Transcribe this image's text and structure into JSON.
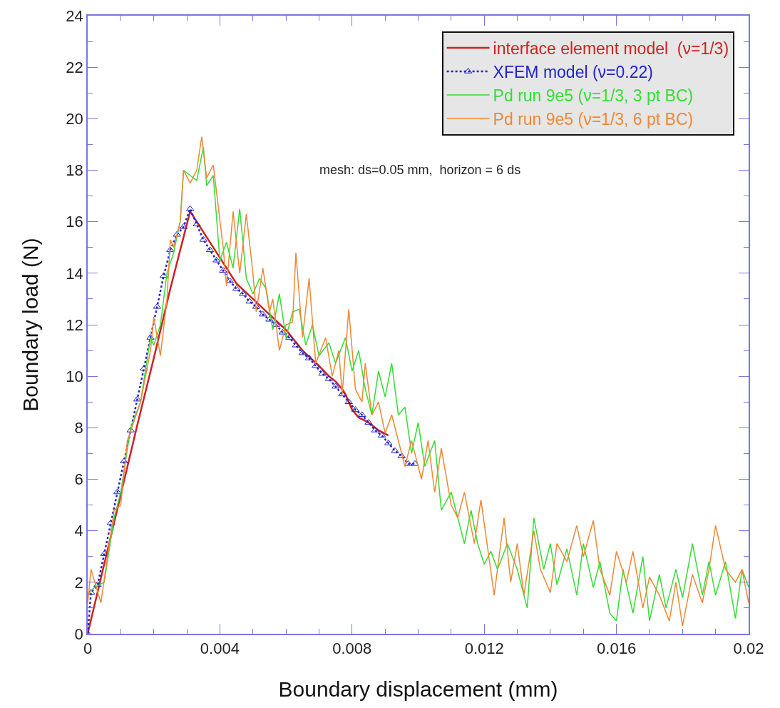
{
  "chart_data": {
    "type": "line",
    "xlabel": "Boundary displacement (mm)",
    "ylabel": "Boundary load (N)",
    "xlim": [
      0,
      0.02
    ],
    "xticks": [
      0,
      0.004,
      0.008,
      0.012,
      0.016,
      0.02
    ],
    "ylim": [
      0,
      24
    ],
    "yticks": [
      0,
      2,
      4,
      6,
      8,
      10,
      12,
      14,
      16,
      18,
      20,
      22,
      24
    ],
    "legend": "top right",
    "annotations": [
      {
        "text": "mesh: ds=0.05 mm,  horizon = 6 ds"
      }
    ],
    "series": [
      {
        "name": "interface element model  (ν=1/3)",
        "color": "#cc2222",
        "line_style": "solid",
        "marker": "none",
        "x": [
          0,
          0.0005,
          0.001,
          0.0015,
          0.002,
          0.0025,
          0.0031,
          0.0035,
          0.004,
          0.0045,
          0.005,
          0.0055,
          0.006,
          0.0065,
          0.007,
          0.0073,
          0.0075,
          0.0077,
          0.0078,
          0.008,
          0.0082,
          0.0085,
          0.0088,
          0.0091
        ],
        "values": [
          0,
          2.7,
          5.4,
          8.1,
          10.7,
          13.4,
          16.4,
          15.6,
          14.6,
          13.6,
          13.0,
          12.4,
          11.8,
          11.0,
          10.4,
          10.0,
          9.8,
          9.5,
          9.3,
          8.7,
          8.4,
          8.2,
          7.9,
          7.7
        ]
      },
      {
        "name": "XFEM model (ν=0.22)",
        "color": "#2222cc",
        "line_style": "dotted",
        "marker": "triangle",
        "x": [
          0,
          0.0001,
          0.0003,
          0.0005,
          0.0007,
          0.0009,
          0.0011,
          0.0013,
          0.0015,
          0.0017,
          0.0019,
          0.0021,
          0.0023,
          0.0025,
          0.0027,
          0.0029,
          0.0031,
          0.0033,
          0.0035,
          0.0037,
          0.0039,
          0.0041,
          0.0043,
          0.0045,
          0.0047,
          0.0049,
          0.0051,
          0.0053,
          0.0055,
          0.0057,
          0.0059,
          0.0061,
          0.0063,
          0.0065,
          0.0067,
          0.0069,
          0.0071,
          0.0073,
          0.0075,
          0.0077,
          0.0079,
          0.0081,
          0.0083,
          0.0085,
          0.0087,
          0.0089,
          0.0091,
          0.0093,
          0.0095,
          0.0097,
          0.0099
        ],
        "values": [
          0,
          1.6,
          1.9,
          3.1,
          4.3,
          5.5,
          6.7,
          7.9,
          9.1,
          10.3,
          11.5,
          12.7,
          13.9,
          14.9,
          15.5,
          15.8,
          16.5,
          15.9,
          15.3,
          14.9,
          14.5,
          14.1,
          13.7,
          13.4,
          13.2,
          12.9,
          12.7,
          12.4,
          12.2,
          12.0,
          11.7,
          11.5,
          11.2,
          10.9,
          10.7,
          10.4,
          10.1,
          9.9,
          9.6,
          9.3,
          9.0,
          8.7,
          8.5,
          8.2,
          7.9,
          7.7,
          7.4,
          7.1,
          6.9,
          6.6,
          6.6
        ]
      },
      {
        "name": "Pd run 9e5 (ν=1/3, 3 pt BC)",
        "color": "#33dd33",
        "line_style": "solid",
        "marker": "none",
        "x": [
          0,
          0.0002,
          0.0005,
          0.0008,
          0.001,
          0.0013,
          0.0016,
          0.0019,
          0.002,
          0.0022,
          0.0024,
          0.0026,
          0.0028,
          0.0029,
          0.0031,
          0.0033,
          0.0035,
          0.0036,
          0.0038,
          0.004,
          0.0042,
          0.0044,
          0.0046,
          0.0048,
          0.005,
          0.0052,
          0.0054,
          0.0056,
          0.0058,
          0.006,
          0.0062,
          0.0064,
          0.0066,
          0.0068,
          0.007,
          0.0073,
          0.0075,
          0.0078,
          0.008,
          0.0082,
          0.0084,
          0.0086,
          0.0088,
          0.009,
          0.0092,
          0.0094,
          0.0096,
          0.0098,
          0.01,
          0.0102,
          0.0105,
          0.0107,
          0.011,
          0.0112,
          0.0114,
          0.0116,
          0.0118,
          0.012,
          0.0122,
          0.0124,
          0.0127,
          0.013,
          0.0133,
          0.0135,
          0.0138,
          0.014,
          0.0142,
          0.0145,
          0.0148,
          0.015,
          0.0153,
          0.0155,
          0.0158,
          0.016,
          0.0162,
          0.0165,
          0.0168,
          0.017,
          0.0173,
          0.0175,
          0.0178,
          0.018,
          0.0183,
          0.0186,
          0.0188,
          0.019,
          0.0193,
          0.0196,
          0.0198,
          0.02
        ],
        "values": [
          1.5,
          1.8,
          2,
          4.5,
          5.5,
          8,
          9,
          11.5,
          11.2,
          12,
          14,
          14.8,
          16,
          18,
          17.8,
          17.6,
          18.9,
          17.4,
          17.8,
          14.5,
          15.2,
          14.2,
          16.5,
          13.8,
          13.2,
          13.8,
          13.4,
          11.8,
          13.2,
          11.5,
          12.5,
          12.6,
          11.2,
          12,
          10.8,
          11.3,
          10.5,
          11.5,
          10.2,
          11,
          9.5,
          8.5,
          10.2,
          9.2,
          10.5,
          8.5,
          8.8,
          7,
          8.2,
          6.5,
          7.5,
          4.8,
          5.5,
          4.5,
          3.5,
          4.8,
          3.5,
          2.7,
          3.2,
          2.5,
          3.5,
          2.5,
          1,
          4.5,
          2.5,
          3.5,
          1.9,
          3.3,
          1.5,
          3.5,
          1.8,
          2.8,
          0.8,
          0.5,
          2.5,
          0.8,
          3,
          0.5,
          2.3,
          1,
          2.5,
          1.4,
          3.5,
          1.5,
          2.8,
          1.5,
          2.8,
          0.6,
          2.5,
          1.8
        ]
      },
      {
        "name": "Pd run 9e5 (ν=1/3, 6 pt BC)",
        "color": "#ee8833",
        "line_style": "solid",
        "marker": "none",
        "x": [
          0,
          0.0001,
          0.0004,
          0.0006,
          0.0008,
          0.001,
          0.0012,
          0.0016,
          0.0019,
          0.002,
          0.0022,
          0.0024,
          0.0025,
          0.0026,
          0.0028,
          0.0029,
          0.0031,
          0.0033,
          0.00345,
          0.0036,
          0.0038,
          0.0041,
          0.0042,
          0.0044,
          0.0046,
          0.0048,
          0.005,
          0.0051,
          0.0053,
          0.0055,
          0.0056,
          0.0058,
          0.006,
          0.0062,
          0.0063,
          0.0065,
          0.0067,
          0.0069,
          0.0072,
          0.0074,
          0.0076,
          0.0077,
          0.0079,
          0.0081,
          0.0083,
          0.0084,
          0.0086,
          0.0088,
          0.009,
          0.0092,
          0.0096,
          0.0098,
          0.0101,
          0.0103,
          0.0105,
          0.0107,
          0.011,
          0.0112,
          0.0114,
          0.0117,
          0.0119,
          0.0123,
          0.0126,
          0.0128,
          0.013,
          0.0132,
          0.0135,
          0.0137,
          0.014,
          0.0142,
          0.0145,
          0.0148,
          0.015,
          0.0153,
          0.0155,
          0.0158,
          0.016,
          0.0163,
          0.0165,
          0.0168,
          0.017,
          0.0173,
          0.0176,
          0.0178,
          0.018,
          0.0183,
          0.0186,
          0.0188,
          0.019,
          0.0193,
          0.0196,
          0.0198,
          0.02
        ],
        "values": [
          1.2,
          2.5,
          1.2,
          3,
          4.8,
          5,
          7.5,
          9,
          11,
          12.3,
          10.8,
          13,
          15.3,
          15,
          16,
          18,
          17.5,
          18,
          19.3,
          17.7,
          18.2,
          15,
          13.5,
          16.4,
          14,
          16.3,
          14,
          12.5,
          14.2,
          12.5,
          13,
          11,
          12,
          12.1,
          14.8,
          11.5,
          13.8,
          10.5,
          11.5,
          10,
          11,
          9.3,
          12.6,
          9.5,
          9,
          10.5,
          8.5,
          9,
          7.8,
          8.5,
          6.5,
          7.5,
          6,
          7.5,
          5.5,
          7.2,
          5,
          4.5,
          5.5,
          3.5,
          5.2,
          1.5,
          4.5,
          2,
          3.5,
          1.5,
          4,
          2.5,
          1.6,
          3.5,
          2.8,
          4.2,
          3,
          4.4,
          2.5,
          1.5,
          3.2,
          2,
          3.2,
          1,
          2.2,
          1.5,
          0.5,
          2,
          0.3,
          2.3,
          1.2,
          2.5,
          4.2,
          2.5,
          2,
          2.5,
          1.2
        ]
      }
    ]
  }
}
